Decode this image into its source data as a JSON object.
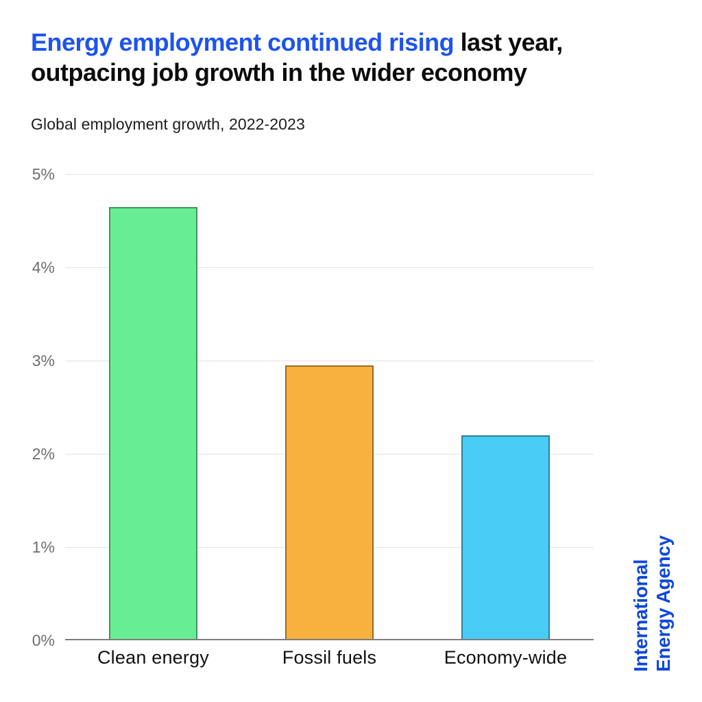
{
  "header": {
    "title_highlight": "Energy employment continued rising",
    "title_rest_line1": " last year,",
    "title_line2": "outpacing job growth in the wider economy",
    "highlight_color": "#1d53f0"
  },
  "chart_data": {
    "type": "bar",
    "title": "Energy employment continued rising last year, outpacing job growth in the wider economy",
    "subtitle": "Global employment growth, 2022-2023",
    "categories": [
      "Clean energy",
      "Fossil fuels",
      "Economy-wide"
    ],
    "values": [
      4.65,
      2.95,
      2.2
    ],
    "unit": "%",
    "bar_colors": [
      "#68ee92",
      "#f8b13e",
      "#49cdf6"
    ],
    "bar_border_color": "rgba(0,0,0,0.38)",
    "xlabel": "",
    "ylabel": "",
    "ylim": [
      0,
      5
    ],
    "ytick_step": 1,
    "yticks": [
      "0%",
      "1%",
      "2%",
      "3%",
      "4%",
      "5%"
    ],
    "grid": true,
    "gridline_color": "#e2e2e2",
    "axis_color": "#7d7d7d",
    "legend": "none"
  },
  "branding": {
    "line1": "International",
    "line2": "Energy Agency",
    "color": "#0d46dd"
  }
}
